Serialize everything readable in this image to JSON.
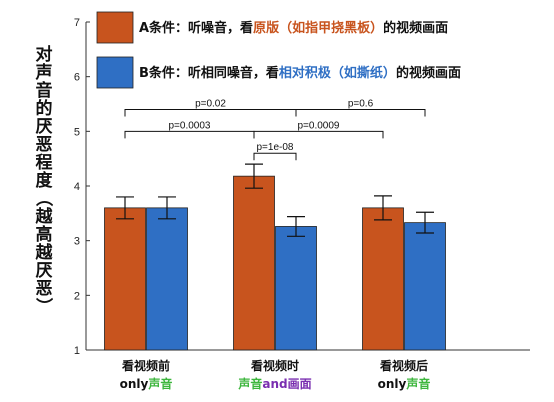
{
  "chart_data": {
    "type": "bar",
    "ylabel": "对声音的厌恶程度（越高越厌恶）",
    "ylim": [
      1,
      7
    ],
    "yticks": [
      "1",
      "2",
      "3",
      "4",
      "5",
      "6",
      "7"
    ],
    "categories": [
      {
        "line1": "看视频前",
        "line2": [
          {
            "text": "only",
            "color": "#111111"
          },
          {
            "text": "声音",
            "color": "#3db63d"
          }
        ]
      },
      {
        "line1": "看视频时",
        "line2": [
          {
            "text": "声音",
            "color": "#3db63d"
          },
          {
            "text": "and",
            "color": "#7a2fb0"
          },
          {
            "text": "画面",
            "color": "#7a2fb0"
          }
        ]
      },
      {
        "line1": "看视频后",
        "line2": [
          {
            "text": "only",
            "color": "#111111"
          },
          {
            "text": "声音",
            "color": "#3db63d"
          }
        ]
      }
    ],
    "series": [
      {
        "color": "#c8541e",
        "values": [
          3.6,
          4.18,
          3.6
        ],
        "errors": [
          0.2,
          0.22,
          0.22
        ],
        "legend": [
          {
            "text": "A条件：听噪音，看",
            "color": "#111111"
          },
          {
            "text": "原版（如指甲挠黑板）",
            "color": "#c8541e"
          },
          {
            "text": "的视频画面",
            "color": "#111111"
          }
        ]
      },
      {
        "color": "#2f6fc4",
        "values": [
          3.6,
          3.26,
          3.33
        ],
        "errors": [
          0.2,
          0.18,
          0.19
        ],
        "legend": [
          {
            "text": "B条件：听相同噪音，看",
            "color": "#111111"
          },
          {
            "text": "相对积极（如撕纸）",
            "color": "#2f6fc4"
          },
          {
            "text": "的视频画面",
            "color": "#111111"
          }
        ]
      }
    ],
    "annotations": [
      {
        "text": "p=0.02",
        "from": [
          0,
          0
        ],
        "to": [
          1,
          1
        ],
        "y": 5.4
      },
      {
        "text": "p=0.6",
        "from": [
          1,
          1
        ],
        "to": [
          2,
          1
        ],
        "y": 5.4
      },
      {
        "text": "p=0.0003",
        "from": [
          0,
          0
        ],
        "to": [
          1,
          0
        ],
        "y": 5.0
      },
      {
        "text": "p=0.0009",
        "from": [
          1,
          0
        ],
        "to": [
          2,
          0
        ],
        "y": 5.0
      },
      {
        "text": "p=1e-08",
        "from": [
          1,
          0
        ],
        "to": [
          1,
          1
        ],
        "y": 4.6
      }
    ]
  }
}
